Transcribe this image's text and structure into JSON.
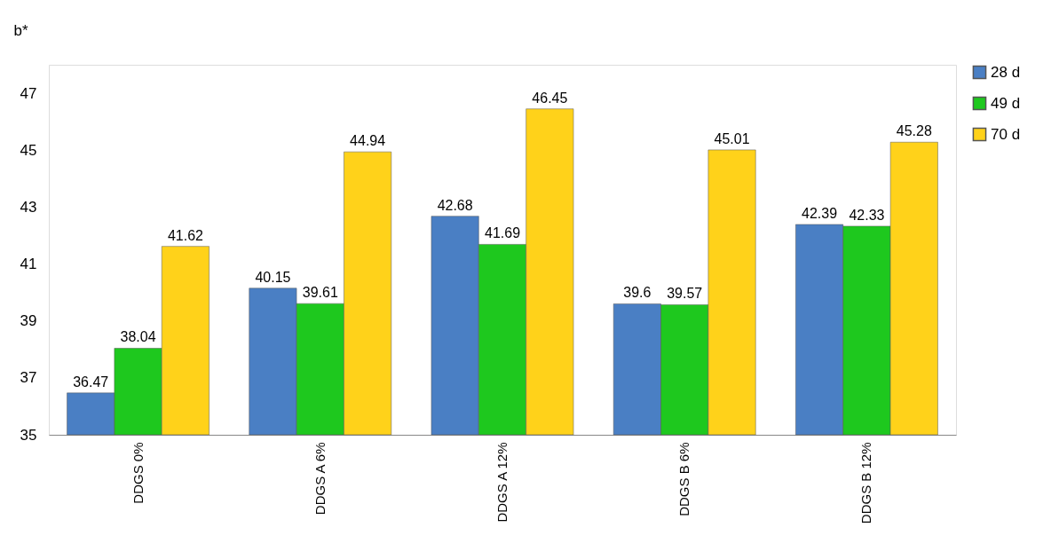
{
  "chart_data": {
    "type": "bar",
    "ylabel": "b*",
    "categories": [
      "DDGS 0%",
      "DDGS A 6%",
      "DDGS A 12%",
      "DDGS B 6%",
      "DDGS B 12%"
    ],
    "series": [
      {
        "name": "28 d",
        "color": "#4a7fc4",
        "values": [
          36.47,
          40.15,
          42.68,
          39.6,
          42.39
        ]
      },
      {
        "name": "49 d",
        "color": "#1ec81e",
        "values": [
          38.04,
          39.61,
          41.69,
          39.57,
          42.33
        ]
      },
      {
        "name": "70 d",
        "color": "#ffd21a",
        "values": [
          41.62,
          44.94,
          46.45,
          45.01,
          45.28
        ]
      }
    ],
    "ylim": [
      35,
      48
    ],
    "yticks": [
      35,
      37,
      39,
      41,
      43,
      45,
      47
    ],
    "grid": false,
    "legend": "right",
    "data_labels": true
  }
}
